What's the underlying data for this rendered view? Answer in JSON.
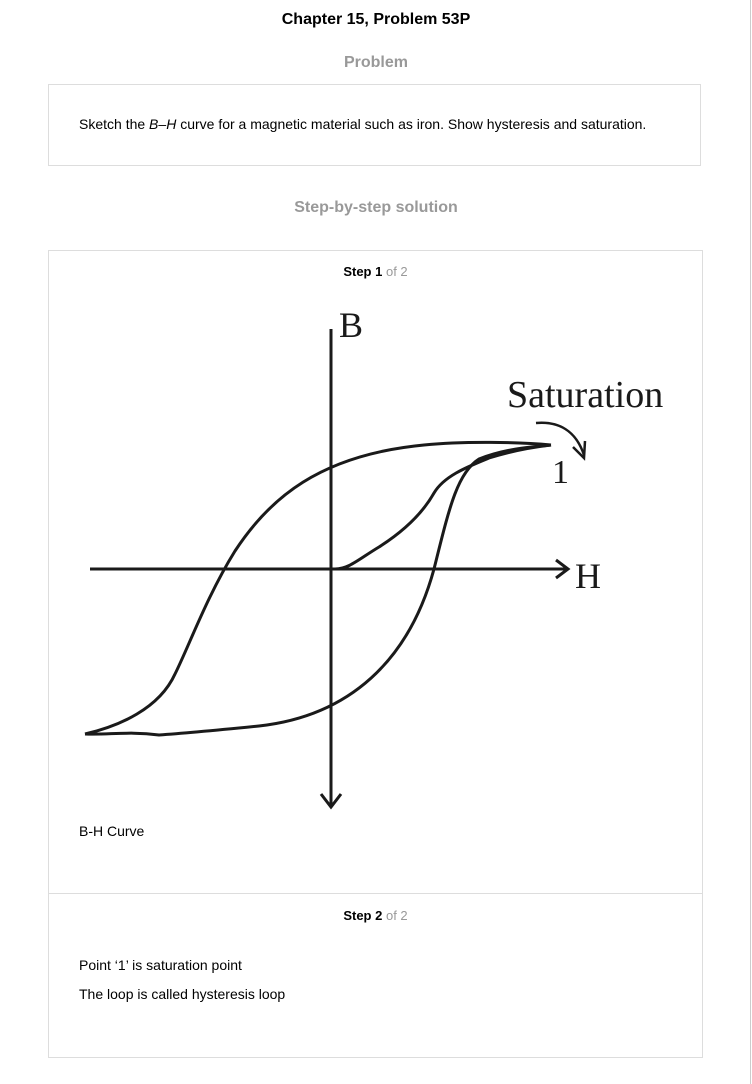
{
  "header": {
    "title": "Chapter 15, Problem 53P"
  },
  "problem": {
    "heading": "Problem",
    "text_before": "Sketch the ",
    "text_b": "B",
    "text_dash": "–",
    "text_h": "H",
    "text_after": " curve for a magnetic material such as iron. Show hysteresis and saturation."
  },
  "solution": {
    "heading": "Step-by-step solution",
    "steps": [
      {
        "label": "Step 1",
        "of": "of 2",
        "figure": {
          "axis_b_label": "B",
          "axis_h_label": "H",
          "saturation_label": "Saturation",
          "point_label": "1"
        },
        "caption": "B-H Curve"
      },
      {
        "label": "Step 2",
        "of": "of 2",
        "lines": [
          "Point ‘1’ is saturation point",
          "The loop is called hysteresis loop"
        ]
      }
    ]
  }
}
